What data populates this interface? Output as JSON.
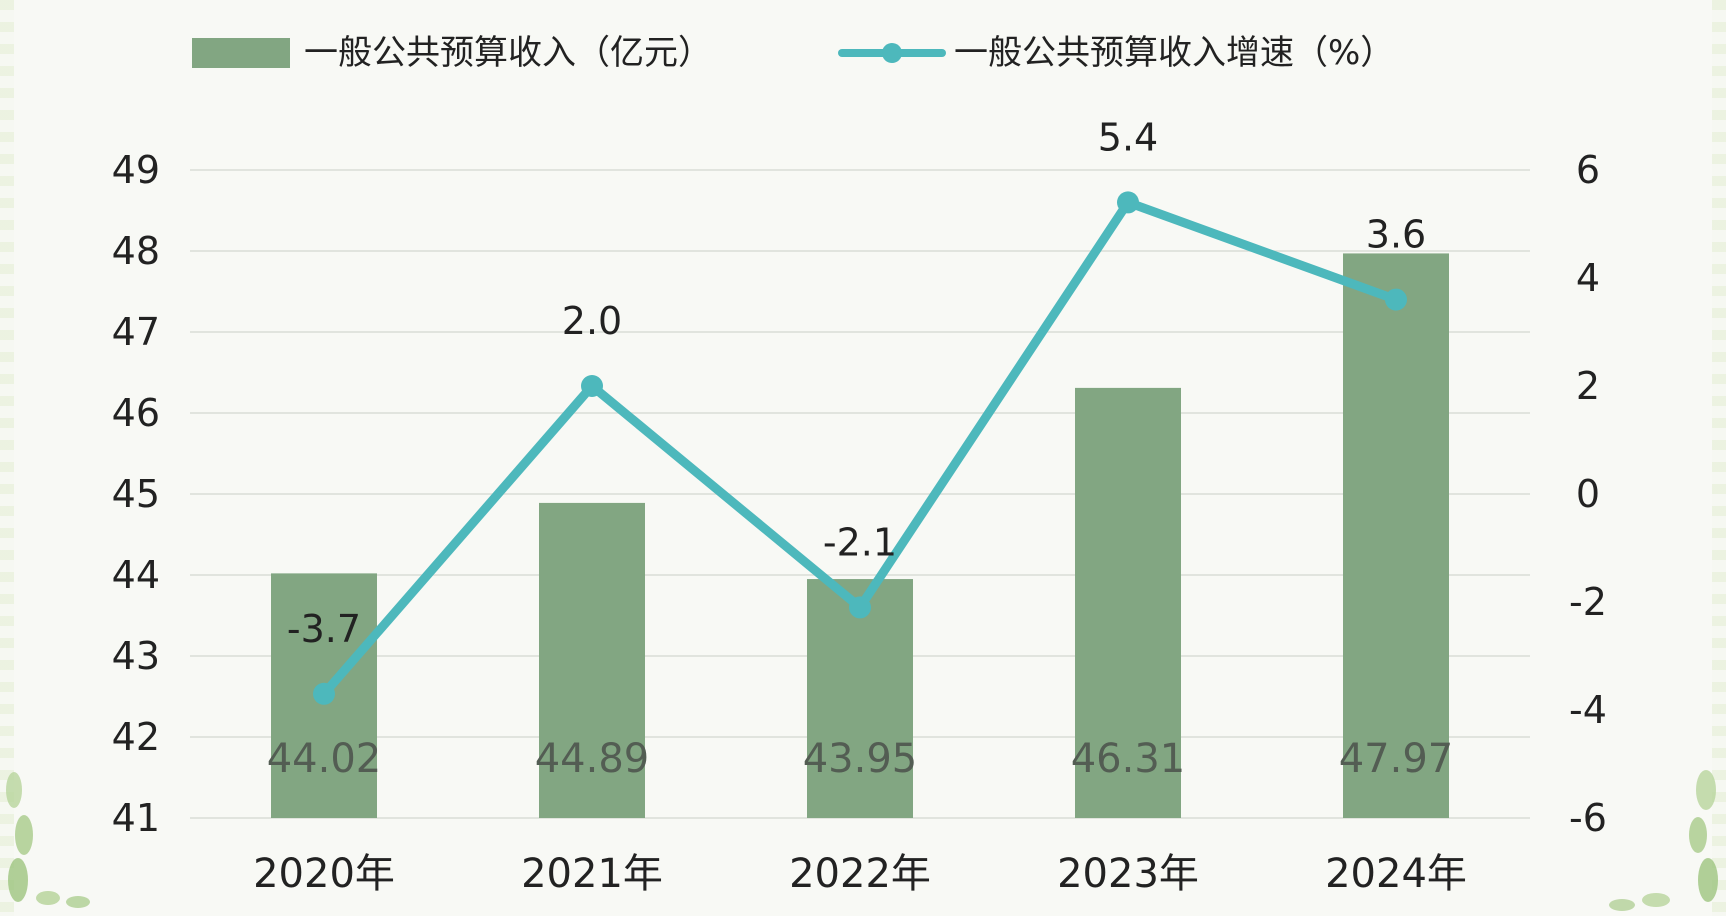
{
  "colors": {
    "bar": "#82a682",
    "line": "#4db8bc",
    "grid": "#d9ddd6",
    "text": "#222222",
    "bar_label": "#535d53",
    "background": "#f8f9f5"
  },
  "chart_data": {
    "type": "bar",
    "categories": [
      "2020年",
      "2021年",
      "2022年",
      "2023年",
      "2024年"
    ],
    "series": [
      {
        "name": "一般公共预算收入（亿元）",
        "type": "bar",
        "axis": "left",
        "values": [
          44.02,
          44.89,
          43.95,
          46.31,
          47.97
        ],
        "labels": [
          "44.02",
          "44.89",
          "43.95",
          "46.31",
          "47.97"
        ]
      },
      {
        "name": "一般公共预算收入增速（%）",
        "type": "line",
        "axis": "right",
        "values": [
          -3.7,
          2.0,
          -2.1,
          5.4,
          3.6
        ],
        "labels": [
          "-3.7",
          "2.0",
          "-2.1",
          "5.4",
          "3.6"
        ]
      }
    ],
    "y_left": {
      "min": 41,
      "max": 49,
      "ticks": [
        "41",
        "42",
        "43",
        "44",
        "45",
        "46",
        "47",
        "48",
        "49"
      ]
    },
    "y_right": {
      "min": -6,
      "max": 6,
      "ticks": [
        "-6",
        "-4",
        "-2",
        "0",
        "2",
        "4",
        "6"
      ]
    },
    "legend": {
      "placement": "top",
      "items": [
        "一般公共预算收入（亿元）",
        "一般公共预算收入增速（%）"
      ]
    },
    "grid": true
  }
}
